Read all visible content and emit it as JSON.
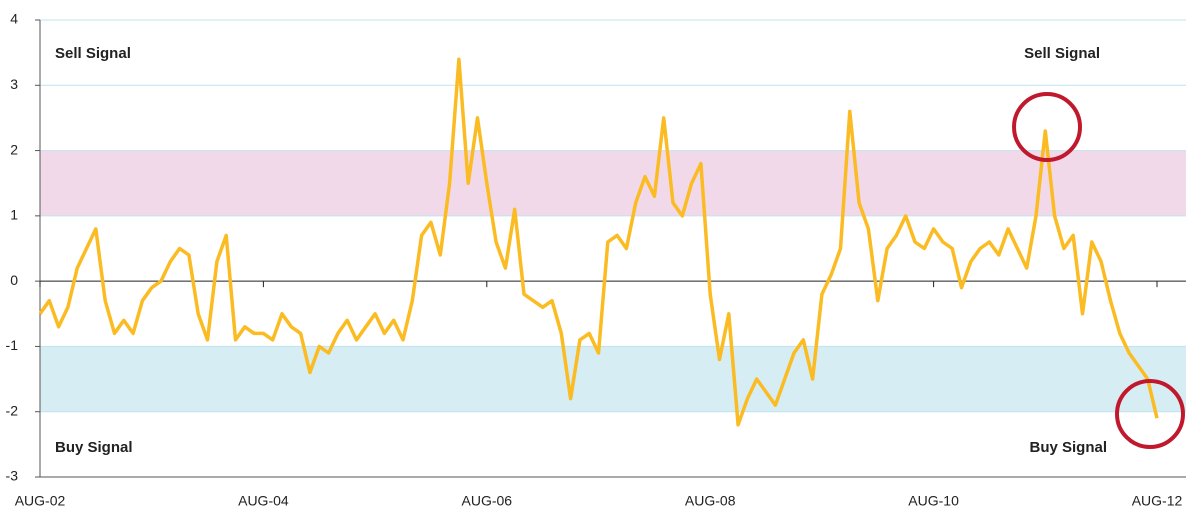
{
  "chart_data": {
    "type": "line",
    "categories": [
      "AUG-02",
      null,
      null,
      null,
      null,
      null,
      null,
      null,
      null,
      null,
      null,
      null,
      null,
      null,
      null,
      null,
      null,
      null,
      null,
      null,
      null,
      null,
      null,
      null,
      "AUG-04",
      null,
      null,
      null,
      null,
      null,
      null,
      null,
      null,
      null,
      null,
      null,
      null,
      null,
      null,
      null,
      null,
      null,
      null,
      null,
      null,
      null,
      null,
      null,
      "AUG-06",
      null,
      null,
      null,
      null,
      null,
      null,
      null,
      null,
      null,
      null,
      null,
      null,
      null,
      null,
      null,
      null,
      null,
      null,
      null,
      null,
      null,
      null,
      null,
      "AUG-08",
      null,
      null,
      null,
      null,
      null,
      null,
      null,
      null,
      null,
      null,
      null,
      null,
      null,
      null,
      null,
      null,
      null,
      null,
      null,
      null,
      null,
      null,
      null,
      "AUG-10",
      null,
      null,
      null,
      null,
      null,
      null,
      null,
      null,
      null,
      null,
      null,
      null,
      null,
      null,
      null,
      null,
      null,
      null,
      null,
      null,
      null,
      null,
      null,
      "AUG-12"
    ],
    "series": [
      {
        "color": "#fbbb22",
        "values": [
          -0.5,
          -0.3,
          -0.7,
          -0.4,
          0.2,
          0.5,
          0.8,
          -0.3,
          -0.8,
          -0.6,
          -0.8,
          -0.3,
          -0.1,
          0.0,
          0.3,
          0.5,
          0.4,
          -0.5,
          -0.9,
          0.3,
          0.7,
          -0.9,
          -0.7,
          -0.8,
          -0.8,
          -0.9,
          -0.5,
          -0.7,
          -0.8,
          -1.4,
          -1.0,
          -1.1,
          -0.8,
          -0.6,
          -0.9,
          -0.7,
          -0.5,
          -0.8,
          -0.6,
          -0.9,
          -0.3,
          0.7,
          0.9,
          0.4,
          1.5,
          3.4,
          1.5,
          2.5,
          1.5,
          0.6,
          0.2,
          1.1,
          -0.2,
          -0.3,
          -0.4,
          -0.3,
          -0.8,
          -1.8,
          -0.9,
          -0.8,
          -1.1,
          0.6,
          0.7,
          0.5,
          1.2,
          1.6,
          1.3,
          2.5,
          1.2,
          1.0,
          1.5,
          1.8,
          -0.2,
          -1.2,
          -0.5,
          -2.2,
          -1.8,
          -1.5,
          -1.7,
          -1.9,
          -1.5,
          -1.1,
          -0.9,
          -1.5,
          -0.2,
          0.1,
          0.5,
          2.6,
          1.2,
          0.8,
          -0.3,
          0.5,
          0.7,
          1.0,
          0.6,
          0.5,
          0.8,
          0.6,
          0.5,
          -0.1,
          0.3,
          0.5,
          0.6,
          0.4,
          0.8,
          0.5,
          0.2,
          1.0,
          2.3,
          1.0,
          0.5,
          0.7,
          -0.5,
          0.6,
          0.3,
          -0.3,
          -0.8,
          -1.1,
          -1.3,
          -1.5,
          -2.1
        ]
      }
    ],
    "ylim": [
      -3,
      4
    ],
    "yticks": [
      -3,
      -2,
      -1,
      0,
      1,
      2,
      3,
      4
    ],
    "grid": true,
    "bands": [
      {
        "from": 1,
        "to": 2,
        "color": "#f2d9ea"
      },
      {
        "from": -2,
        "to": -1,
        "color": "#d6edf3"
      }
    ],
    "annotations": [
      "Sell Signal",
      "Sell Signal",
      "Buy Signal",
      "Buy Signal"
    ]
  }
}
